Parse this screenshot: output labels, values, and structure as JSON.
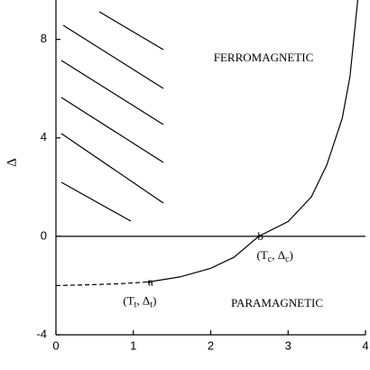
{
  "chart_data": {
    "type": "line",
    "y_label": "Δ",
    "xlim": [
      0,
      4
    ],
    "ylim": [
      -4,
      9.6
    ],
    "xticks": [
      0,
      1,
      2,
      3,
      4
    ],
    "yticks": [
      -4,
      0,
      4,
      8
    ],
    "zero_line": true,
    "color": "#000000",
    "series": [
      {
        "style": "dashed",
        "x": [
          0,
          0.4,
          0.8,
          1.2
        ],
        "values": [
          -2.0,
          -1.97,
          -1.93,
          -1.85
        ]
      },
      {
        "style": "solid",
        "x": [
          1.2,
          1.6,
          2.0,
          2.3,
          2.62,
          3.0,
          3.3,
          3.5,
          3.7,
          3.8,
          3.9
        ],
        "values": [
          -1.85,
          -1.65,
          -1.3,
          -0.85,
          0,
          0.6,
          1.6,
          2.9,
          4.8,
          6.5,
          9.6
        ]
      }
    ],
    "points": [
      {
        "label": "a",
        "x": 1.2,
        "y": -1.85,
        "coords": [
          "(T",
          "t",
          ", Δ",
          "t",
          ")"
        ]
      },
      {
        "label": "b",
        "x": 2.62,
        "y": 0,
        "coords": [
          "(T",
          "c",
          ", Δ",
          "c",
          ")"
        ]
      }
    ],
    "regions": [
      "FERROMAGNETIC",
      "PARAMAGNETIC"
    ]
  }
}
